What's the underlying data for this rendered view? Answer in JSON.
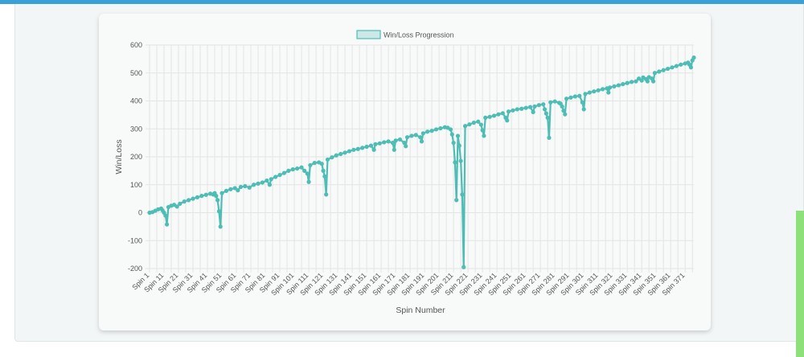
{
  "theme": {
    "top_bar_color": "#3aa0d8",
    "side_accent_color": "#8ee07a",
    "series_color": "#4dbdb5",
    "series_fill": "rgba(77,189,181,0.25)",
    "grid_color": "#e4e4e4"
  },
  "chart_data": {
    "type": "line",
    "title": "",
    "xlabel": "Spin Number",
    "ylabel": "Win/Loss",
    "ylim": [
      -200,
      600
    ],
    "yticks": [
      -200,
      -100,
      0,
      100,
      200,
      300,
      400,
      500,
      600
    ],
    "grid": true,
    "legend_position": "top-center",
    "x_count": 377,
    "x_tick_labels": [
      "Spin 1",
      "Spin 11",
      "Spin 21",
      "Spin 31",
      "Spin 41",
      "Spin 51",
      "Spin 61",
      "Spin 71",
      "Spin 81",
      "Spin 91",
      "Spin 101",
      "Spin 111",
      "Spin 121",
      "Spin 131",
      "Spin 141",
      "Spin 151",
      "Spin 161",
      "Spin 171",
      "Spin 181",
      "Spin 191",
      "Spin 201",
      "Spin 211",
      "Spin 221",
      "Spin 231",
      "Spin 241",
      "Spin 251",
      "Spin 261",
      "Spin 271",
      "Spin 281",
      "Spin 291",
      "Spin 301",
      "Spin 311",
      "Spin 321",
      "Spin 331",
      "Spin 341",
      "Spin 351",
      "Spin 361",
      "Spin 371"
    ],
    "series": [
      {
        "name": "Win/Loss Progression",
        "color": "#4dbdb5",
        "points": [
          [
            1,
            0
          ],
          [
            3,
            2
          ],
          [
            5,
            7
          ],
          [
            7,
            12
          ],
          [
            9,
            15
          ],
          [
            10,
            8
          ],
          [
            11,
            0
          ],
          [
            12,
            -10
          ],
          [
            13,
            -42
          ],
          [
            14,
            20
          ],
          [
            16,
            25
          ],
          [
            18,
            28
          ],
          [
            20,
            22
          ],
          [
            22,
            32
          ],
          [
            25,
            40
          ],
          [
            28,
            45
          ],
          [
            31,
            50
          ],
          [
            34,
            55
          ],
          [
            37,
            60
          ],
          [
            40,
            64
          ],
          [
            43,
            68
          ],
          [
            45,
            65
          ],
          [
            46,
            70
          ],
          [
            47,
            60
          ],
          [
            48,
            45
          ],
          [
            49,
            5
          ],
          [
            50,
            -50
          ],
          [
            51,
            70
          ],
          [
            54,
            78
          ],
          [
            57,
            84
          ],
          [
            60,
            88
          ],
          [
            62,
            80
          ],
          [
            64,
            92
          ],
          [
            67,
            95
          ],
          [
            70,
            90
          ],
          [
            73,
            100
          ],
          [
            76,
            104
          ],
          [
            79,
            108
          ],
          [
            82,
            115
          ],
          [
            84,
            100
          ],
          [
            85,
            120
          ],
          [
            88,
            128
          ],
          [
            91,
            135
          ],
          [
            94,
            142
          ],
          [
            97,
            150
          ],
          [
            100,
            155
          ],
          [
            103,
            158
          ],
          [
            106,
            162
          ],
          [
            108,
            150
          ],
          [
            110,
            140
          ],
          [
            111,
            110
          ],
          [
            112,
            170
          ],
          [
            115,
            178
          ],
          [
            118,
            180
          ],
          [
            120,
            175
          ],
          [
            121,
            150
          ],
          [
            122,
            130
          ],
          [
            123,
            65
          ],
          [
            124,
            190
          ],
          [
            127,
            198
          ],
          [
            130,
            205
          ],
          [
            133,
            210
          ],
          [
            136,
            215
          ],
          [
            139,
            220
          ],
          [
            142,
            225
          ],
          [
            145,
            228
          ],
          [
            148,
            232
          ],
          [
            151,
            236
          ],
          [
            154,
            240
          ],
          [
            156,
            225
          ],
          [
            157,
            245
          ],
          [
            160,
            248
          ],
          [
            163,
            252
          ],
          [
            166,
            255
          ],
          [
            169,
            250
          ],
          [
            170,
            225
          ],
          [
            171,
            258
          ],
          [
            174,
            262
          ],
          [
            177,
            250
          ],
          [
            178,
            238
          ],
          [
            179,
            270
          ],
          [
            182,
            275
          ],
          [
            185,
            278
          ],
          [
            188,
            270
          ],
          [
            189,
            255
          ],
          [
            190,
            284
          ],
          [
            193,
            290
          ],
          [
            196,
            293
          ],
          [
            199,
            298
          ],
          [
            202,
            302
          ],
          [
            205,
            306
          ],
          [
            207,
            304
          ],
          [
            209,
            298
          ],
          [
            210,
            280
          ],
          [
            211,
            250
          ],
          [
            212,
            180
          ],
          [
            213,
            45
          ],
          [
            214,
            275
          ],
          [
            215,
            240
          ],
          [
            216,
            185
          ],
          [
            217,
            65
          ],
          [
            218,
            -195
          ],
          [
            219,
            310
          ],
          [
            222,
            316
          ],
          [
            225,
            322
          ],
          [
            228,
            326
          ],
          [
            230,
            315
          ],
          [
            231,
            295
          ],
          [
            232,
            275
          ],
          [
            233,
            340
          ],
          [
            236,
            343
          ],
          [
            239,
            347
          ],
          [
            242,
            352
          ],
          [
            245,
            356
          ],
          [
            247,
            340
          ],
          [
            248,
            330
          ],
          [
            249,
            362
          ],
          [
            252,
            366
          ],
          [
            255,
            370
          ],
          [
            258,
            372
          ],
          [
            261,
            375
          ],
          [
            264,
            378
          ],
          [
            266,
            360
          ],
          [
            267,
            380
          ],
          [
            270,
            385
          ],
          [
            273,
            388
          ],
          [
            274,
            370
          ],
          [
            275,
            355
          ],
          [
            276,
            340
          ],
          [
            277,
            268
          ],
          [
            278,
            395
          ],
          [
            281,
            398
          ],
          [
            284,
            393
          ],
          [
            285,
            390
          ],
          [
            286,
            380
          ],
          [
            287,
            365
          ],
          [
            288,
            352
          ],
          [
            289,
            408
          ],
          [
            292,
            412
          ],
          [
            295,
            416
          ],
          [
            298,
            418
          ],
          [
            300,
            395
          ],
          [
            301,
            370
          ],
          [
            302,
            425
          ],
          [
            305,
            430
          ],
          [
            308,
            434
          ],
          [
            311,
            438
          ],
          [
            314,
            442
          ],
          [
            317,
            445
          ],
          [
            318,
            430
          ],
          [
            319,
            448
          ],
          [
            322,
            452
          ],
          [
            325,
            456
          ],
          [
            328,
            460
          ],
          [
            331,
            464
          ],
          [
            334,
            468
          ],
          [
            337,
            470
          ],
          [
            339,
            480
          ],
          [
            341,
            473
          ],
          [
            342,
            484
          ],
          [
            344,
            478
          ],
          [
            345,
            470
          ],
          [
            346,
            485
          ],
          [
            348,
            480
          ],
          [
            349,
            470
          ],
          [
            350,
            500
          ],
          [
            353,
            505
          ],
          [
            356,
            510
          ],
          [
            359,
            515
          ],
          [
            362,
            520
          ],
          [
            365,
            525
          ],
          [
            368,
            530
          ],
          [
            371,
            534
          ],
          [
            373,
            537
          ],
          [
            374,
            530
          ],
          [
            375,
            520
          ],
          [
            376,
            545
          ],
          [
            377,
            555
          ]
        ]
      }
    ]
  }
}
